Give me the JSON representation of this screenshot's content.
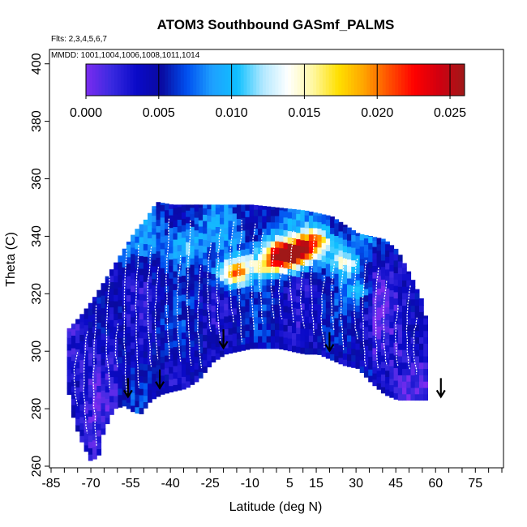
{
  "chart_data": {
    "type": "heatmap",
    "title": "ATOM3 Southbound GASmf_PALMS",
    "flights_note": "Flts: 2,3,4,5,6,7",
    "dates_note": "MMDD: 1001,1004,1006,1008,1011,1014",
    "xlabel": "Latitude (deg N)",
    "ylabel": "Theta (C)",
    "xlim": [
      -85,
      85
    ],
    "ylim": [
      260,
      405
    ],
    "x_ticks": [
      -85,
      -70,
      -55,
      -40,
      -25,
      -10,
      5,
      15,
      30,
      45,
      60,
      75
    ],
    "y_ticks": [
      260,
      280,
      300,
      320,
      340,
      360,
      380,
      400
    ],
    "colorbar": {
      "min": 0.0,
      "max": 0.026,
      "ticks": [
        "0.000",
        "0.005",
        "0.010",
        "0.015",
        "0.020",
        "0.025"
      ],
      "tick_values": [
        0,
        0.005,
        0.01,
        0.015,
        0.02,
        0.025
      ],
      "colors": [
        "#7b2cf0",
        "#3a2ae0",
        "#0a0ac8",
        "#0a0aa0",
        "#0050f0",
        "#1ea0ff",
        "#10c0ff",
        "#b0e8ff",
        "#ffffff",
        "#fff7a0",
        "#ffe000",
        "#ffa500",
        "#ff5000",
        "#ff0000",
        "#d00010",
        "#a01818"
      ]
    },
    "domain": {
      "upper_theta": [
        [
          -79,
          308
        ],
        [
          -75,
          312
        ],
        [
          -70,
          318
        ],
        [
          -66,
          324
        ],
        [
          -62,
          330
        ],
        [
          -58,
          336
        ],
        [
          -54,
          342
        ],
        [
          -50,
          346
        ],
        [
          -46,
          352
        ],
        [
          -40,
          351
        ],
        [
          -30,
          351
        ],
        [
          -20,
          351
        ],
        [
          -10,
          351
        ],
        [
          0,
          350
        ],
        [
          10,
          349
        ],
        [
          20,
          347
        ],
        [
          30,
          341
        ],
        [
          40,
          339
        ],
        [
          45,
          335
        ],
        [
          50,
          326
        ],
        [
          54,
          318
        ],
        [
          56,
          310
        ],
        [
          57,
          300
        ]
      ],
      "lower_theta": [
        [
          -79,
          285
        ],
        [
          -77,
          275
        ],
        [
          -74,
          268
        ],
        [
          -71,
          262
        ],
        [
          -68,
          263
        ],
        [
          -66,
          272
        ],
        [
          -62,
          280
        ],
        [
          -58,
          281
        ],
        [
          -55,
          279
        ],
        [
          -52,
          278
        ],
        [
          -48,
          283
        ],
        [
          -44,
          285
        ],
        [
          -40,
          286
        ],
        [
          -35,
          287
        ],
        [
          -30,
          290
        ],
        [
          -25,
          296
        ],
        [
          -20,
          299
        ],
        [
          -15,
          300
        ],
        [
          -10,
          301
        ],
        [
          -5,
          301
        ],
        [
          0,
          301
        ],
        [
          5,
          300
        ],
        [
          10,
          299
        ],
        [
          15,
          299
        ],
        [
          20,
          297
        ],
        [
          25,
          295
        ],
        [
          30,
          294
        ],
        [
          35,
          289
        ],
        [
          40,
          285
        ],
        [
          45,
          283
        ],
        [
          50,
          283
        ],
        [
          53,
          283
        ]
      ]
    },
    "hotspots": [
      {
        "lat": -5,
        "theta": 329,
        "value": 0.0135
      },
      {
        "lat": 0,
        "theta": 333,
        "value": 0.017
      },
      {
        "lat": 5,
        "theta": 332,
        "value": 0.02
      },
      {
        "lat": 10,
        "theta": 335,
        "value": 0.015
      },
      {
        "lat": 15,
        "theta": 337,
        "value": 0.013
      },
      {
        "lat": -15,
        "theta": 327,
        "value": 0.016
      },
      {
        "lat": -20,
        "theta": 325,
        "value": 0.011
      },
      {
        "lat": 25,
        "theta": 330,
        "value": 0.012
      },
      {
        "lat": 30,
        "theta": 320,
        "value": 0.009
      },
      {
        "lat": -35,
        "theta": 335,
        "value": 0.008
      },
      {
        "lat": -45,
        "theta": 310,
        "value": 0.005
      }
    ],
    "arrows": [
      {
        "lat": -56,
        "theta": 285
      },
      {
        "lat": -44,
        "theta": 288
      },
      {
        "lat": -20,
        "theta": 302
      },
      {
        "lat": 20,
        "theta": 301
      },
      {
        "lat": 62,
        "theta": 285
      }
    ]
  }
}
